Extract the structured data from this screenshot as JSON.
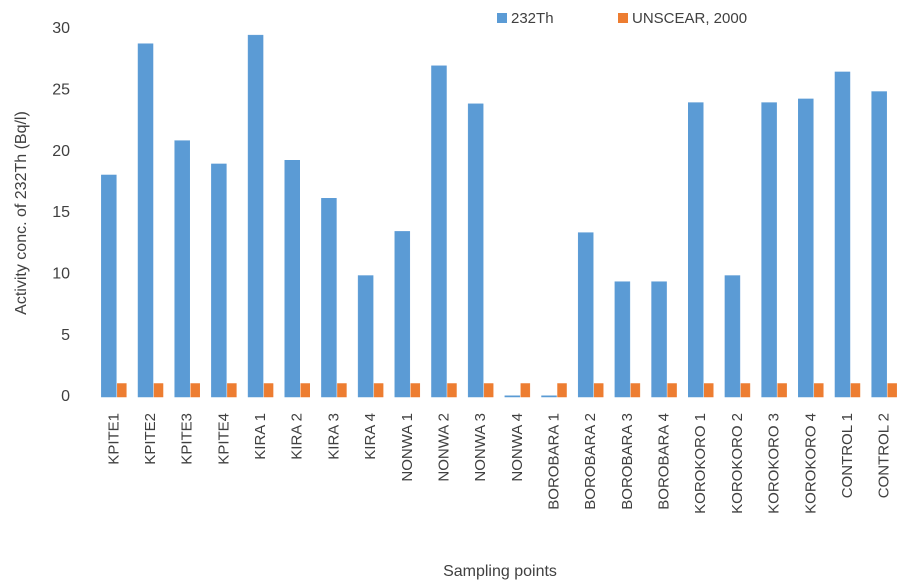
{
  "chart_data": {
    "type": "bar",
    "y_label": "Activity  conc. of 232Th (Bq/l)",
    "x_label": "Sampling points",
    "categories": [
      "KPITE1",
      "KPITE2",
      "KPITE3",
      "KPITE4",
      "KIRA 1",
      "KIRA 2",
      "KIRA 3",
      "KIRA 4",
      "NONWA 1",
      "NONWA 2",
      "NONWA 3",
      "NONWA 4",
      "BOROBARA 1",
      "BOROBARA 2",
      "BOROBARA 3",
      "BOROBARA 4",
      "KOROKORO 1",
      "KOROKORO 2",
      "KOROKORO 3",
      "KOROKORO 4",
      "CONTROL 1",
      "CONTROL 2"
    ],
    "series": [
      {
        "name": "232Th",
        "color": "#5b9bd5",
        "values": [
          18.1,
          28.8,
          20.9,
          19.0,
          29.5,
          19.3,
          16.2,
          9.9,
          13.5,
          27.0,
          23.9,
          0.1,
          0.1,
          13.4,
          9.4,
          9.4,
          24.0,
          9.9,
          24.0,
          24.3,
          26.5,
          24.9
        ]
      },
      {
        "name": "UNSCEAR, 2000",
        "color": "#ed7d31",
        "values": [
          1.1,
          1.1,
          1.1,
          1.1,
          1.1,
          1.1,
          1.1,
          1.1,
          1.1,
          1.1,
          1.1,
          1.1,
          1.1,
          1.1,
          1.1,
          1.1,
          1.1,
          1.1,
          1.1,
          1.1,
          1.1,
          1.1
        ]
      }
    ],
    "ylim": [
      0,
      30
    ],
    "yticks": [
      0,
      5,
      10,
      15,
      20,
      25,
      30
    ],
    "legend": "top"
  }
}
